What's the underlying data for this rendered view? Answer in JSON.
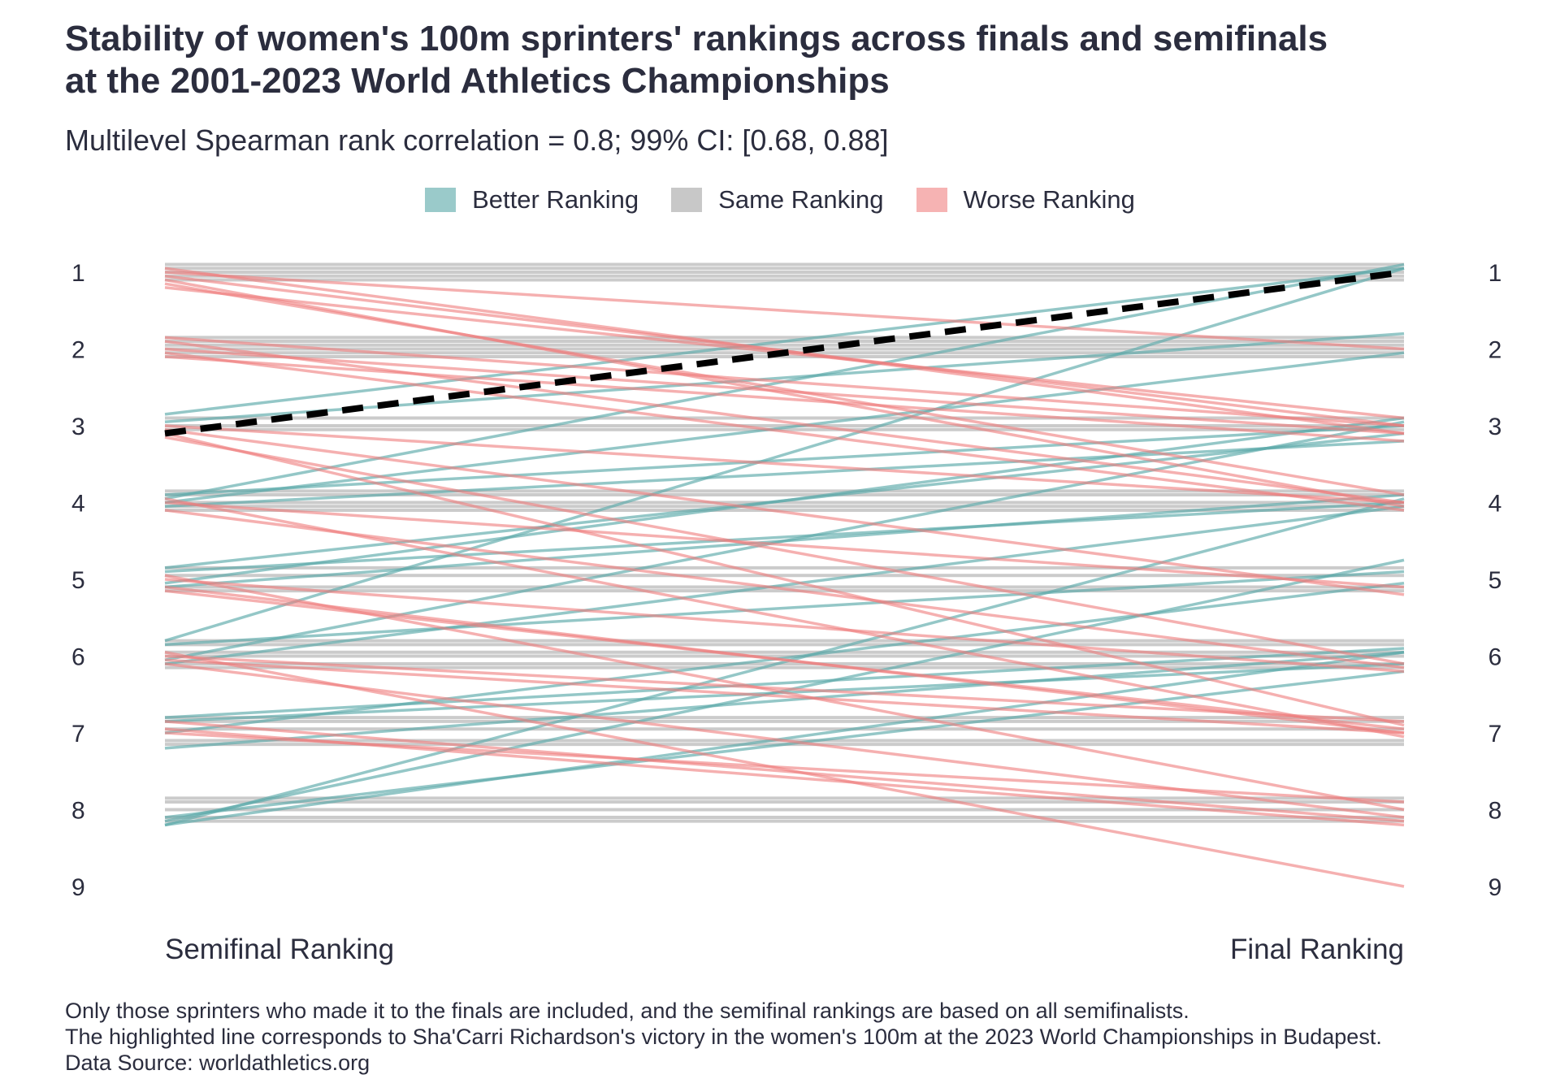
{
  "title_line1": "Stability of women's 100m sprinters' rankings across finals and semifinals",
  "title_line2": "at the 2001-2023 World Athletics Championships",
  "subtitle": "Multilevel Spearman rank correlation = 0.8; 99% CI: [0.68, 0.88]",
  "legend": [
    {
      "label": "Better Ranking",
      "color": "#7fbfbf"
    },
    {
      "label": "Same Ranking",
      "color": "#bdbdbd"
    },
    {
      "label": "Worse Ranking",
      "color": "#f4a3a3"
    }
  ],
  "footer": {
    "line1": "Only those sprinters who made it to the finals are included, and the semifinal rankings are based on all semifinalists.",
    "line2": "The highlighted line corresponds to Sha'Carri Richardson's victory in the women's 100m at the 2023 World Championships in Budapest.",
    "line3": "Data Source: worldathletics.org"
  },
  "chart_data": {
    "type": "slope",
    "xlabel_left": "Semifinal Ranking",
    "xlabel_right": "Final Ranking",
    "y_ticks": [
      1,
      2,
      3,
      4,
      5,
      6,
      7,
      8,
      9
    ],
    "ylim": [
      1,
      9
    ],
    "y_reversed": true,
    "colors": {
      "better": "#5aa9a9",
      "same": "#a9a9a9",
      "worse": "#ee7b7b",
      "highlight": "#000000"
    },
    "highlight": {
      "semifinal": 3.1,
      "final": 1.0
    },
    "same": [
      {
        "semifinal": 0.9,
        "final": 0.9
      },
      {
        "semifinal": 0.95,
        "final": 0.95
      },
      {
        "semifinal": 1.0,
        "final": 1.0
      },
      {
        "semifinal": 1.05,
        "final": 1.05
      },
      {
        "semifinal": 1.1,
        "final": 1.1
      },
      {
        "semifinal": 1.85,
        "final": 1.85
      },
      {
        "semifinal": 1.9,
        "final": 1.9
      },
      {
        "semifinal": 1.95,
        "final": 1.95
      },
      {
        "semifinal": 2.0,
        "final": 2.0
      },
      {
        "semifinal": 2.05,
        "final": 2.05
      },
      {
        "semifinal": 2.1,
        "final": 2.1
      },
      {
        "semifinal": 2.9,
        "final": 2.9
      },
      {
        "semifinal": 3.0,
        "final": 3.0
      },
      {
        "semifinal": 3.05,
        "final": 3.05
      },
      {
        "semifinal": 3.85,
        "final": 3.85
      },
      {
        "semifinal": 3.9,
        "final": 3.9
      },
      {
        "semifinal": 4.0,
        "final": 4.0
      },
      {
        "semifinal": 4.05,
        "final": 4.05
      },
      {
        "semifinal": 4.1,
        "final": 4.1
      },
      {
        "semifinal": 4.85,
        "final": 4.85
      },
      {
        "semifinal": 4.95,
        "final": 4.95
      },
      {
        "semifinal": 5.1,
        "final": 5.1
      },
      {
        "semifinal": 5.15,
        "final": 5.15
      },
      {
        "semifinal": 5.8,
        "final": 5.8
      },
      {
        "semifinal": 5.85,
        "final": 5.85
      },
      {
        "semifinal": 5.95,
        "final": 5.95
      },
      {
        "semifinal": 6.0,
        "final": 6.0
      },
      {
        "semifinal": 6.1,
        "final": 6.1
      },
      {
        "semifinal": 6.15,
        "final": 6.15
      },
      {
        "semifinal": 6.8,
        "final": 6.8
      },
      {
        "semifinal": 6.85,
        "final": 6.85
      },
      {
        "semifinal": 6.95,
        "final": 6.95
      },
      {
        "semifinal": 7.1,
        "final": 7.1
      },
      {
        "semifinal": 7.15,
        "final": 7.15
      },
      {
        "semifinal": 7.85,
        "final": 7.85
      },
      {
        "semifinal": 7.9,
        "final": 7.9
      },
      {
        "semifinal": 8.0,
        "final": 8.0
      },
      {
        "semifinal": 8.1,
        "final": 8.1
      },
      {
        "semifinal": 8.15,
        "final": 8.15
      }
    ],
    "better": [
      {
        "semifinal": 2.85,
        "final": 0.95
      },
      {
        "semifinal": 2.95,
        "final": 1.8
      },
      {
        "semifinal": 3.95,
        "final": 0.9
      },
      {
        "semifinal": 4.0,
        "final": 2.05
      },
      {
        "semifinal": 3.9,
        "final": 3.0
      },
      {
        "semifinal": 4.05,
        "final": 3.2
      },
      {
        "semifinal": 4.85,
        "final": 3.1
      },
      {
        "semifinal": 4.9,
        "final": 4.0
      },
      {
        "semifinal": 5.1,
        "final": 3.9
      },
      {
        "semifinal": 5.05,
        "final": 2.9
      },
      {
        "semifinal": 5.8,
        "final": 0.95
      },
      {
        "semifinal": 6.05,
        "final": 2.95
      },
      {
        "semifinal": 6.1,
        "final": 4.05
      },
      {
        "semifinal": 5.85,
        "final": 4.9
      },
      {
        "semifinal": 6.8,
        "final": 5.9
      },
      {
        "semifinal": 6.85,
        "final": 6.1
      },
      {
        "semifinal": 7.2,
        "final": 5.95
      },
      {
        "semifinal": 7.0,
        "final": 5.05
      },
      {
        "semifinal": 8.2,
        "final": 3.95
      },
      {
        "semifinal": 8.15,
        "final": 4.75
      },
      {
        "semifinal": 8.2,
        "final": 5.95
      },
      {
        "semifinal": 8.1,
        "final": 6.2
      }
    ],
    "worse": [
      {
        "semifinal": 0.95,
        "final": 3.1
      },
      {
        "semifinal": 1.0,
        "final": 2.0
      },
      {
        "semifinal": 1.05,
        "final": 3.0
      },
      {
        "semifinal": 1.15,
        "final": 3.9
      },
      {
        "semifinal": 1.2,
        "final": 2.9
      },
      {
        "semifinal": 1.1,
        "final": 4.05
      },
      {
        "semifinal": 1.85,
        "final": 3.0
      },
      {
        "semifinal": 1.9,
        "final": 4.0
      },
      {
        "semifinal": 2.0,
        "final": 3.1
      },
      {
        "semifinal": 2.05,
        "final": 4.1
      },
      {
        "semifinal": 2.1,
        "final": 3.2
      },
      {
        "semifinal": 3.0,
        "final": 4.0
      },
      {
        "semifinal": 3.1,
        "final": 6.9
      },
      {
        "semifinal": 3.15,
        "final": 6.1
      },
      {
        "semifinal": 3.05,
        "final": 5.2
      },
      {
        "semifinal": 4.0,
        "final": 5.1
      },
      {
        "semifinal": 3.95,
        "final": 7.05
      },
      {
        "semifinal": 4.1,
        "final": 6.15
      },
      {
        "semifinal": 5.0,
        "final": 6.2
      },
      {
        "semifinal": 5.1,
        "final": 7.0
      },
      {
        "semifinal": 5.15,
        "final": 6.95
      },
      {
        "semifinal": 4.95,
        "final": 8.0
      },
      {
        "semifinal": 6.0,
        "final": 6.85
      },
      {
        "semifinal": 6.05,
        "final": 7.0
      },
      {
        "semifinal": 6.1,
        "final": 8.1
      },
      {
        "semifinal": 5.95,
        "final": 9.0
      },
      {
        "semifinal": 6.85,
        "final": 8.15
      },
      {
        "semifinal": 6.95,
        "final": 8.2
      },
      {
        "semifinal": 7.0,
        "final": 7.9
      }
    ]
  }
}
